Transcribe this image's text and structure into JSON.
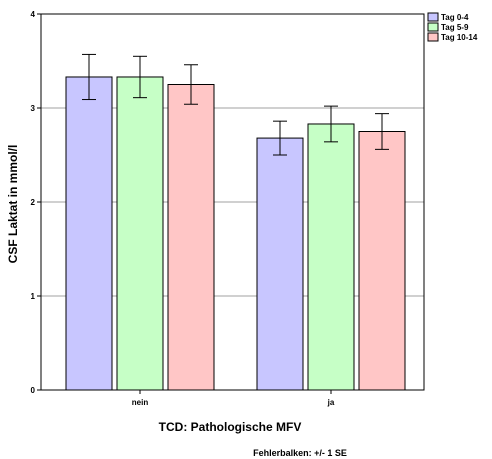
{
  "chart_data": {
    "type": "bar",
    "categories": [
      "nein",
      "ja"
    ],
    "series": [
      {
        "name": "Tag 0-4",
        "color": "#c8c6ff",
        "values": [
          3.33,
          2.68
        ],
        "error_se": [
          0.24,
          0.18
        ]
      },
      {
        "name": "Tag 5-9",
        "color": "#c6ffc6",
        "values": [
          3.33,
          2.83
        ],
        "error_se": [
          0.22,
          0.19
        ]
      },
      {
        "name": "Tag 10-14",
        "color": "#ffc6c6",
        "values": [
          3.25,
          2.75
        ],
        "error_se": [
          0.21,
          0.19
        ]
      }
    ],
    "xlabel": "TCD: Pathologische MFV",
    "ylabel": "CSF Laktat in mmol/l",
    "ylim": [
      0,
      4
    ],
    "yticks": [
      "0",
      "1",
      "2",
      "3",
      "4"
    ],
    "grid": true,
    "legend_position": "top-right",
    "footnote": "Fehlerbalken: +/- 1 SE"
  }
}
